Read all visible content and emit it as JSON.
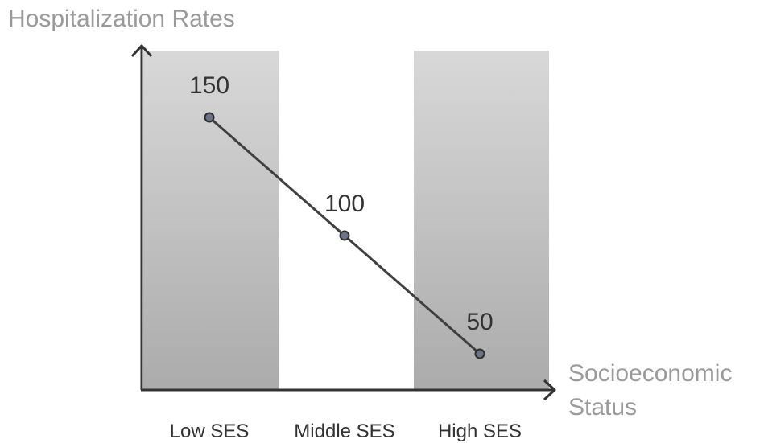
{
  "chart_data": {
    "type": "line",
    "ylabel": "Hospitalization Rates",
    "xlabel_lines": [
      "Socioeconomic",
      "Status"
    ],
    "categories": [
      "Low SES",
      "Middle SES",
      "High SES"
    ],
    "values": [
      150,
      100,
      50
    ],
    "data_labels": [
      "150",
      "100",
      "50"
    ],
    "ylim": [
      0,
      200
    ],
    "shaded_bands": [
      "Low SES",
      "High SES"
    ],
    "colors": {
      "line": "#3f3f3f",
      "marker_fill": "#6b7389",
      "band_top": "#d8d8d8",
      "band_bottom": "#ababab",
      "axis": "#333333",
      "axis_title": "#9a9a9a"
    },
    "grid": false,
    "legend": "none"
  }
}
